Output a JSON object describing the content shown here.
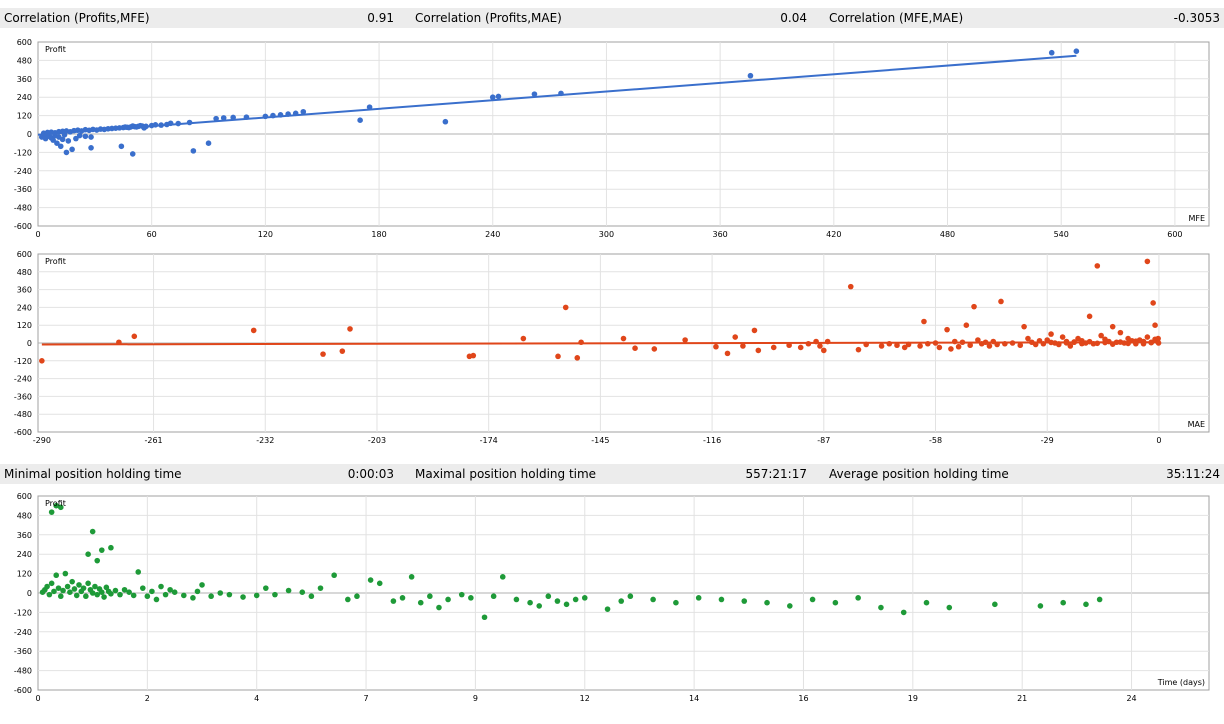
{
  "stats_top": [
    {
      "label": "Correlation (Profits,MFE)",
      "value": "0.91"
    },
    {
      "label": "Correlation (Profits,MAE)",
      "value": "0.04"
    },
    {
      "label": "Correlation (MFE,MAE)",
      "value": "-0.3053"
    }
  ],
  "stats_bottom": [
    {
      "label": "Minimal position holding time",
      "value": "0:00:03"
    },
    {
      "label": "Maximal position holding time",
      "value": "557:21:17"
    },
    {
      "label": "Average position holding time",
      "value": "35:11:24"
    }
  ],
  "chart_data": [
    {
      "type": "scatter",
      "ylabel": "Profit",
      "xlabel": "MFE",
      "color": "#3a6fcc",
      "xlim": [
        0,
        618
      ],
      "ylim": [
        -600,
        600
      ],
      "xticks": [
        0,
        60,
        120,
        180,
        240,
        300,
        360,
        420,
        480,
        540,
        600
      ],
      "yticks": [
        600,
        480,
        360,
        240,
        120,
        0,
        -120,
        -240,
        -360,
        -480,
        -600
      ],
      "grid": true,
      "trendline": [
        [
          0,
          -5
        ],
        [
          548,
          510
        ]
      ],
      "points": [
        [
          2,
          -20
        ],
        [
          3,
          -10
        ],
        [
          4,
          -30
        ],
        [
          5,
          -5
        ],
        [
          6,
          -15
        ],
        [
          7,
          -25
        ],
        [
          8,
          -40
        ],
        [
          9,
          -10
        ],
        [
          10,
          -60
        ],
        [
          11,
          -20
        ],
        [
          12,
          -80
        ],
        [
          13,
          -35
        ],
        [
          14,
          -5
        ],
        [
          15,
          -120
        ],
        [
          16,
          -45
        ],
        [
          18,
          -100
        ],
        [
          20,
          -30
        ],
        [
          22,
          -10
        ],
        [
          25,
          -15
        ],
        [
          28,
          -20
        ],
        [
          3,
          5
        ],
        [
          5,
          10
        ],
        [
          7,
          12
        ],
        [
          9,
          8
        ],
        [
          11,
          15
        ],
        [
          13,
          18
        ],
        [
          15,
          20
        ],
        [
          17,
          14
        ],
        [
          19,
          22
        ],
        [
          21,
          25
        ],
        [
          23,
          20
        ],
        [
          25,
          28
        ],
        [
          27,
          24
        ],
        [
          29,
          30
        ],
        [
          31,
          26
        ],
        [
          33,
          32
        ],
        [
          35,
          30
        ],
        [
          37,
          34
        ],
        [
          39,
          36
        ],
        [
          41,
          38
        ],
        [
          43,
          40
        ],
        [
          45,
          42
        ],
        [
          47,
          44
        ],
        [
          49,
          46
        ],
        [
          51,
          48
        ],
        [
          53,
          50
        ],
        [
          55,
          52
        ],
        [
          57,
          50
        ],
        [
          46,
          45
        ],
        [
          48,
          42
        ],
        [
          50,
          52
        ],
        [
          52,
          46
        ],
        [
          54,
          54
        ],
        [
          56,
          40
        ],
        [
          60,
          55
        ],
        [
          62,
          60
        ],
        [
          65,
          58
        ],
        [
          68,
          62
        ],
        [
          70,
          70
        ],
        [
          74,
          68
        ],
        [
          80,
          75
        ],
        [
          28,
          -90
        ],
        [
          44,
          -80
        ],
        [
          50,
          -130
        ],
        [
          82,
          -110
        ],
        [
          90,
          -60
        ],
        [
          94,
          100
        ],
        [
          98,
          105
        ],
        [
          103,
          108
        ],
        [
          110,
          110
        ],
        [
          120,
          115
        ],
        [
          124,
          120
        ],
        [
          128,
          125
        ],
        [
          132,
          130
        ],
        [
          136,
          135
        ],
        [
          140,
          145
        ],
        [
          170,
          90
        ],
        [
          175,
          175
        ],
        [
          215,
          80
        ],
        [
          240,
          240
        ],
        [
          243,
          245
        ],
        [
          262,
          260
        ],
        [
          276,
          265
        ],
        [
          376,
          380
        ],
        [
          535,
          530
        ],
        [
          548,
          540
        ]
      ]
    },
    {
      "type": "scatter",
      "ylabel": "Profit",
      "xlabel": "MAE",
      "color": "#e0461a",
      "xlim": [
        -291,
        13
      ],
      "ylim": [
        -600,
        600
      ],
      "xticks": [
        -290,
        -261,
        -232,
        -203,
        -174,
        -145,
        -116,
        -87,
        -58,
        -29,
        0
      ],
      "yticks": [
        600,
        480,
        360,
        240,
        120,
        0,
        -120,
        -240,
        -360,
        -480,
        -600
      ],
      "grid": true,
      "trendline": [
        [
          -290,
          -10
        ],
        [
          0,
          5
        ]
      ],
      "points": [
        [
          -290,
          -120
        ],
        [
          -270,
          5
        ],
        [
          -266,
          45
        ],
        [
          -235,
          85
        ],
        [
          -217,
          -75
        ],
        [
          -212,
          -55
        ],
        [
          -210,
          95
        ],
        [
          -179,
          -90
        ],
        [
          -178,
          -85
        ],
        [
          -165,
          30
        ],
        [
          -156,
          -90
        ],
        [
          -154,
          240
        ],
        [
          -151,
          -100
        ],
        [
          -150,
          5
        ],
        [
          -139,
          30
        ],
        [
          -136,
          -35
        ],
        [
          -131,
          -40
        ],
        [
          -123,
          20
        ],
        [
          -115,
          -25
        ],
        [
          -112,
          -70
        ],
        [
          -110,
          40
        ],
        [
          -108,
          -20
        ],
        [
          -105,
          85
        ],
        [
          -104,
          -50
        ],
        [
          -100,
          -30
        ],
        [
          -96,
          -15
        ],
        [
          -93,
          -30
        ],
        [
          -91,
          -5
        ],
        [
          -89,
          10
        ],
        [
          -88,
          -20
        ],
        [
          -87,
          -50
        ],
        [
          -86,
          10
        ],
        [
          -80,
          380
        ],
        [
          -78,
          -45
        ],
        [
          -76,
          -10
        ],
        [
          -72,
          -20
        ],
        [
          -70,
          -5
        ],
        [
          -68,
          -15
        ],
        [
          -66,
          -30
        ],
        [
          -65,
          -10
        ],
        [
          -62,
          -20
        ],
        [
          -61,
          145
        ],
        [
          -60,
          -5
        ],
        [
          -58,
          0
        ],
        [
          -57,
          -30
        ],
        [
          -55,
          90
        ],
        [
          -54,
          -40
        ],
        [
          -53,
          10
        ],
        [
          -52,
          -25
        ],
        [
          -51,
          5
        ],
        [
          -50,
          120
        ],
        [
          -49,
          -15
        ],
        [
          -48,
          245
        ],
        [
          -47,
          20
        ],
        [
          -46,
          -5
        ],
        [
          -45,
          5
        ],
        [
          -44,
          -20
        ],
        [
          -43,
          10
        ],
        [
          -42,
          -10
        ],
        [
          -41,
          280
        ],
        [
          -40,
          -5
        ],
        [
          -38,
          0
        ],
        [
          -36,
          -15
        ],
        [
          -35,
          110
        ],
        [
          -34,
          30
        ],
        [
          -33,
          5
        ],
        [
          -32,
          -10
        ],
        [
          -31,
          15
        ],
        [
          -30,
          -5
        ],
        [
          -29,
          20
        ],
        [
          -28,
          60
        ],
        [
          -27,
          0
        ],
        [
          -26,
          -10
        ],
        [
          -25,
          40
        ],
        [
          -24,
          10
        ],
        [
          -23,
          -20
        ],
        [
          -22,
          5
        ],
        [
          -21,
          30
        ],
        [
          -20,
          15
        ],
        [
          -19,
          0
        ],
        [
          -18,
          180
        ],
        [
          -17,
          -5
        ],
        [
          -16,
          520
        ],
        [
          -15,
          50
        ],
        [
          -14,
          25
        ],
        [
          -13,
          10
        ],
        [
          -12,
          110
        ],
        [
          -11,
          5
        ],
        [
          -10,
          70
        ],
        [
          -9,
          0
        ],
        [
          -8,
          30
        ],
        [
          -7,
          15
        ],
        [
          -6,
          -5
        ],
        [
          -5,
          20
        ],
        [
          -4,
          10
        ],
        [
          -3,
          40
        ],
        [
          -2,
          5
        ],
        [
          -1,
          25
        ],
        [
          -1.5,
          270
        ],
        [
          -0.5,
          15
        ],
        [
          -0.3,
          8
        ],
        [
          -0.2,
          30
        ],
        [
          -0.1,
          0
        ],
        [
          -1,
          120
        ],
        [
          -3,
          550
        ],
        [
          -2,
          2
        ],
        [
          -4,
          -5
        ],
        [
          -6,
          12
        ],
        [
          -8,
          -3
        ],
        [
          -10,
          6
        ],
        [
          -12,
          -8
        ],
        [
          -14,
          3
        ],
        [
          -16,
          -2
        ],
        [
          -18,
          9
        ],
        [
          -20,
          -4
        ],
        [
          -22,
          7
        ],
        [
          -24,
          1
        ],
        [
          -26,
          -6
        ],
        [
          -28,
          4
        ]
      ]
    },
    {
      "type": "scatter",
      "ylabel": "Profit",
      "xlabel": "Time (days)",
      "color": "#1e9a38",
      "xlim": [
        0,
        25.7
      ],
      "ylim": [
        -600,
        600
      ],
      "xticks": [
        0,
        2,
        4,
        7,
        9,
        12,
        14,
        16,
        19,
        21,
        24
      ],
      "xtick_values": [
        0,
        2.4,
        4.8,
        7.2,
        9.6,
        12,
        14.4,
        16.8,
        19.2,
        21.6,
        24
      ],
      "yticks": [
        600,
        480,
        360,
        240,
        120,
        0,
        -120,
        -240,
        -360,
        -480,
        -600
      ],
      "grid": true,
      "points": [
        [
          0.4,
          540
        ],
        [
          0.5,
          530
        ],
        [
          0.3,
          500
        ],
        [
          1.2,
          380
        ],
        [
          1.4,
          265
        ],
        [
          1.6,
          280
        ],
        [
          1.1,
          240
        ],
        [
          1.3,
          200
        ],
        [
          0.1,
          5
        ],
        [
          0.15,
          20
        ],
        [
          0.2,
          40
        ],
        [
          0.25,
          -10
        ],
        [
          0.3,
          60
        ],
        [
          0.35,
          10
        ],
        [
          0.4,
          110
        ],
        [
          0.45,
          30
        ],
        [
          0.5,
          -20
        ],
        [
          0.55,
          15
        ],
        [
          0.6,
          120
        ],
        [
          0.65,
          40
        ],
        [
          0.7,
          5
        ],
        [
          0.75,
          70
        ],
        [
          0.8,
          25
        ],
        [
          0.85,
          -15
        ],
        [
          0.9,
          50
        ],
        [
          0.95,
          10
        ],
        [
          1.0,
          30
        ],
        [
          1.05,
          -20
        ],
        [
          1.1,
          60
        ],
        [
          1.15,
          20
        ],
        [
          1.2,
          0
        ],
        [
          1.25,
          40
        ],
        [
          1.3,
          -10
        ],
        [
          1.35,
          25
        ],
        [
          1.4,
          5
        ],
        [
          1.45,
          -25
        ],
        [
          1.5,
          35
        ],
        [
          1.55,
          10
        ],
        [
          1.6,
          -5
        ],
        [
          1.7,
          15
        ],
        [
          1.8,
          -10
        ],
        [
          1.9,
          20
        ],
        [
          2.0,
          5
        ],
        [
          2.1,
          -15
        ],
        [
          2.2,
          130
        ],
        [
          2.3,
          30
        ],
        [
          2.4,
          -20
        ],
        [
          2.5,
          10
        ],
        [
          2.6,
          -40
        ],
        [
          2.7,
          40
        ],
        [
          2.8,
          -10
        ],
        [
          2.9,
          20
        ],
        [
          3.0,
          5
        ],
        [
          3.2,
          -15
        ],
        [
          3.4,
          -30
        ],
        [
          3.5,
          10
        ],
        [
          3.6,
          50
        ],
        [
          3.8,
          -20
        ],
        [
          4.0,
          0
        ],
        [
          4.2,
          -10
        ],
        [
          4.5,
          -25
        ],
        [
          4.8,
          -15
        ],
        [
          5.0,
          30
        ],
        [
          5.2,
          -10
        ],
        [
          5.5,
          15
        ],
        [
          5.8,
          5
        ],
        [
          6.0,
          -20
        ],
        [
          6.2,
          30
        ],
        [
          6.5,
          110
        ],
        [
          6.8,
          -40
        ],
        [
          7.0,
          -20
        ],
        [
          7.3,
          80
        ],
        [
          7.5,
          60
        ],
        [
          7.8,
          -50
        ],
        [
          8.0,
          -30
        ],
        [
          8.2,
          100
        ],
        [
          8.4,
          -60
        ],
        [
          8.6,
          -20
        ],
        [
          8.8,
          -90
        ],
        [
          9.0,
          -40
        ],
        [
          9.3,
          -10
        ],
        [
          9.5,
          -30
        ],
        [
          9.8,
          -150
        ],
        [
          10.0,
          -20
        ],
        [
          10.2,
          100
        ],
        [
          10.5,
          -40
        ],
        [
          10.8,
          -60
        ],
        [
          11.0,
          -80
        ],
        [
          11.2,
          -20
        ],
        [
          11.4,
          -50
        ],
        [
          11.6,
          -70
        ],
        [
          11.8,
          -40
        ],
        [
          12.0,
          -30
        ],
        [
          12.5,
          -100
        ],
        [
          12.8,
          -50
        ],
        [
          13.0,
          -20
        ],
        [
          13.5,
          -40
        ],
        [
          14.0,
          -60
        ],
        [
          14.5,
          -30
        ],
        [
          15.0,
          -40
        ],
        [
          15.5,
          -50
        ],
        [
          16.0,
          -60
        ],
        [
          16.5,
          -80
        ],
        [
          17.0,
          -40
        ],
        [
          17.5,
          -60
        ],
        [
          18.0,
          -30
        ],
        [
          18.5,
          -90
        ],
        [
          19.0,
          -120
        ],
        [
          19.5,
          -60
        ],
        [
          20.0,
          -90
        ],
        [
          21.0,
          -70
        ],
        [
          22.0,
          -80
        ],
        [
          22.5,
          -60
        ],
        [
          23.0,
          -70
        ],
        [
          23.3,
          -40
        ]
      ]
    }
  ]
}
